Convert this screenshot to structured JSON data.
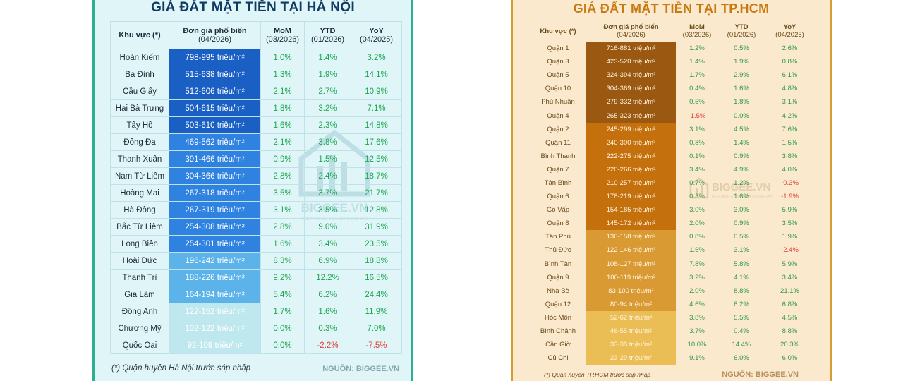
{
  "hanoi": {
    "title": "GIÁ ĐẤT MẶT TIỀN TẠI HÀ NỘI",
    "headers": {
      "area": "Khu vực (*)",
      "price": "Đơn giá phố biến",
      "price_sub": "(04/2026)",
      "mom": "MoM",
      "mom_sub": "(03/2026)",
      "ytd": "YTD",
      "ytd_sub": "(01/2026)",
      "yoy": "YoY",
      "yoy_sub": "(04/2025)"
    },
    "rows": [
      {
        "area": "Hoàn Kiếm",
        "price": "798-995 triệu/m²",
        "mom": "1.0%",
        "ytd": "1.4%",
        "yoy": "3.2%",
        "color": "#1a5fc4"
      },
      {
        "area": "Ba Đình",
        "price": "515-638 triệu/m²",
        "mom": "1.3%",
        "ytd": "1.9%",
        "yoy": "14.1%",
        "color": "#1a5fc4"
      },
      {
        "area": "Cầu Giấy",
        "price": "512-606 triệu/m²",
        "mom": "2.1%",
        "ytd": "2.7%",
        "yoy": "10.9%",
        "color": "#1a5fc4"
      },
      {
        "area": "Hai Bà Trưng",
        "price": "504-615 triệu/m²",
        "mom": "1.8%",
        "ytd": "3.2%",
        "yoy": "7.1%",
        "color": "#1a5fc4"
      },
      {
        "area": "Tây Hồ",
        "price": "503-610 triệu/m²",
        "mom": "1.6%",
        "ytd": "2.3%",
        "yoy": "14.8%",
        "color": "#1a5fc4"
      },
      {
        "area": "Đống Đa",
        "price": "469-562 triệu/m²",
        "mom": "2.1%",
        "ytd": "3.8%",
        "yoy": "17.6%",
        "color": "#2f82e0"
      },
      {
        "area": "Thanh Xuân",
        "price": "391-466 triệu/m²",
        "mom": "0.9%",
        "ytd": "1.5%",
        "yoy": "12.5%",
        "color": "#2f82e0"
      },
      {
        "area": "Nam Từ Liêm",
        "price": "304-366 triệu/m²",
        "mom": "2.8%",
        "ytd": "2.4%",
        "yoy": "18.7%",
        "color": "#2f82e0"
      },
      {
        "area": "Hoàng Mai",
        "price": "267-318 triệu/m²",
        "mom": "3.5%",
        "ytd": "3.7%",
        "yoy": "21.7%",
        "color": "#2f82e0"
      },
      {
        "area": "Hà Đông",
        "price": "267-319 triệu/m²",
        "mom": "3.1%",
        "ytd": "3.5%",
        "yoy": "12.8%",
        "color": "#2f82e0"
      },
      {
        "area": "Bắc Từ Liêm",
        "price": "254-308 triệu/m²",
        "mom": "2.8%",
        "ytd": "9.0%",
        "yoy": "31.9%",
        "color": "#2f82e0"
      },
      {
        "area": "Long Biên",
        "price": "254-301 triệu/m²",
        "mom": "1.6%",
        "ytd": "3.4%",
        "yoy": "23.5%",
        "color": "#2f82e0"
      },
      {
        "area": "Hoài Đức",
        "price": "196-242 triệu/m²",
        "mom": "8.3%",
        "ytd": "6.9%",
        "yoy": "18.8%",
        "color": "#5cb3ea"
      },
      {
        "area": "Thanh Trì",
        "price": "188-226 triệu/m²",
        "mom": "9.2%",
        "ytd": "12.2%",
        "yoy": "16.5%",
        "color": "#5cb3ea"
      },
      {
        "area": "Gia Lâm",
        "price": "164-194 triệu/m²",
        "mom": "5.4%",
        "ytd": "6.2%",
        "yoy": "24.4%",
        "color": "#5cb3ea"
      },
      {
        "area": "Đông Anh",
        "price": "122-152 triệu/m²",
        "mom": "1.7%",
        "ytd": "1.6%",
        "yoy": "11.9%",
        "color": "#bfe8ee"
      },
      {
        "area": "Chương Mỹ",
        "price": "102-122 triệu/m²",
        "mom": "0.0%",
        "ytd": "0.3%",
        "yoy": "7.0%",
        "color": "#bfe8ee"
      },
      {
        "area": "Quốc Oai",
        "price": "92-109 triệu/m²",
        "mom": "0.0%",
        "ytd": "-2.2%",
        "yoy": "-7.5%",
        "color": "#bfe8ee"
      }
    ],
    "footnote": "(*) Quận huyện Hà Nội trước sáp nhập",
    "source": "NGUỒN: BIGGEE.VN",
    "watermark": "BIGGEE.VN",
    "watermark_sub": "NỀN TẢNG DỮ LIỆU ĐẤT ĐỘNG SẢN"
  },
  "hcm": {
    "title": "GIÁ ĐẤT MẶT TIỀN TẠI TP.HCM",
    "headers": {
      "area": "Khu vực (*)",
      "price": "Đơn giá phố biến",
      "price_sub": "(04/2026)",
      "mom": "MoM",
      "mom_sub": "(03/2026)",
      "ytd": "YTD",
      "ytd_sub": "(01/2026)",
      "yoy": "YoY",
      "yoy_sub": "(04/2025)"
    },
    "rows": [
      {
        "area": "Quận 1",
        "price": "716-881 triệu/m²",
        "mom": "1.2%",
        "ytd": "0.5%",
        "yoy": "2.6%",
        "color": "#9a5810"
      },
      {
        "area": "Quận 3",
        "price": "423-520 triệu/m²",
        "mom": "1.4%",
        "ytd": "1.9%",
        "yoy": "0.8%",
        "color": "#9a5810"
      },
      {
        "area": "Quận 5",
        "price": "324-394 triệu/m²",
        "mom": "1.7%",
        "ytd": "2.9%",
        "yoy": "6.1%",
        "color": "#9a5810"
      },
      {
        "area": "Quận 10",
        "price": "304-369 triệu/m²",
        "mom": "0.4%",
        "ytd": "1.6%",
        "yoy": "4.8%",
        "color": "#9a5810"
      },
      {
        "area": "Phú Nhuận",
        "price": "279-332 triệu/m²",
        "mom": "0.5%",
        "ytd": "1.8%",
        "yoy": "3.1%",
        "color": "#9a5810"
      },
      {
        "area": "Quận 4",
        "price": "265-323 triệu/m²",
        "mom": "-1.5%",
        "ytd": "0.0%",
        "yoy": "4.2%",
        "color": "#9a5810"
      },
      {
        "area": "Quận 2",
        "price": "245-299 triệu/m²",
        "mom": "3.1%",
        "ytd": "4.5%",
        "yoy": "7.6%",
        "color": "#c4700d"
      },
      {
        "area": "Quận 11",
        "price": "240-300 triệu/m²",
        "mom": "0.8%",
        "ytd": "1.4%",
        "yoy": "1.5%",
        "color": "#c4700d"
      },
      {
        "area": "Bình Thạnh",
        "price": "222-275 triệu/m²",
        "mom": "0.1%",
        "ytd": "0.9%",
        "yoy": "3.8%",
        "color": "#c4700d"
      },
      {
        "area": "Quận 7",
        "price": "220-266 triệu/m²",
        "mom": "3.4%",
        "ytd": "4.9%",
        "yoy": "4.0%",
        "color": "#c4700d"
      },
      {
        "area": "Tân Bình",
        "price": "210-257 triệu/m²",
        "mom": "0.7%",
        "ytd": "1.2%",
        "yoy": "-0.3%",
        "color": "#c4700d"
      },
      {
        "area": "Quận 6",
        "price": "178-219 triệu/m²",
        "mom": "0.3%",
        "ytd": "1.6%",
        "yoy": "-1.9%",
        "color": "#c4700d"
      },
      {
        "area": "Gò Vấp",
        "price": "154-185 triệu/m²",
        "mom": "3.0%",
        "ytd": "3.0%",
        "yoy": "5.9%",
        "color": "#c4700d"
      },
      {
        "area": "Quận 8",
        "price": "145-172 triệu/m²",
        "mom": "2.0%",
        "ytd": "0.9%",
        "yoy": "3.5%",
        "color": "#c4700d"
      },
      {
        "area": "Tân Phú",
        "price": "130-158 triệu/m²",
        "mom": "0.8%",
        "ytd": "0.5%",
        "yoy": "1.9%",
        "color": "#d99a33"
      },
      {
        "area": "Thủ Đức",
        "price": "122-146 triệu/m²",
        "mom": "1.6%",
        "ytd": "3.1%",
        "yoy": "-2.4%",
        "color": "#d99a33"
      },
      {
        "area": "Bình Tân",
        "price": "108-127 triệu/m²",
        "mom": "7.8%",
        "ytd": "5.8%",
        "yoy": "5.9%",
        "color": "#d99a33"
      },
      {
        "area": "Quận 9",
        "price": "100-119 triệu/m²",
        "mom": "3.2%",
        "ytd": "4.1%",
        "yoy": "3.4%",
        "color": "#d99a33"
      },
      {
        "area": "Nhà Bè",
        "price": "83-100 triệu/m²",
        "mom": "2.0%",
        "ytd": "8.8%",
        "yoy": "21.1%",
        "color": "#d99a33"
      },
      {
        "area": "Quận 12",
        "price": "80-94 triệu/m²",
        "mom": "4.6%",
        "ytd": "6.2%",
        "yoy": "6.8%",
        "color": "#d99a33"
      },
      {
        "area": "Hóc Môn",
        "price": "52-62 triệu/m²",
        "mom": "3.8%",
        "ytd": "5.5%",
        "yoy": "4.5%",
        "color": "#ebbd55"
      },
      {
        "area": "Bình Chánh",
        "price": "46-55 triệu/m²",
        "mom": "3.7%",
        "ytd": "0.4%",
        "yoy": "8.8%",
        "color": "#ebbd55"
      },
      {
        "area": "Cần Giờ",
        "price": "33-38 triệu/m²",
        "mom": "10.0%",
        "ytd": "14.4%",
        "yoy": "20.3%",
        "color": "#ebbd55"
      },
      {
        "area": "Củ Chi",
        "price": "23-29 triệu/m²",
        "mom": "9.1%",
        "ytd": "6.0%",
        "yoy": "6.0%",
        "color": "#ebbd55"
      }
    ],
    "footnote": "(*) Quận huyện TP.HCM trước sáp nhập",
    "source": "NGUỒN: BIGGEE.VN",
    "watermark": "BIGGEE.VN",
    "watermark_sub": "NỀN TẢNG DỮ LIỆU BẤT ĐỘNG SẢN"
  }
}
